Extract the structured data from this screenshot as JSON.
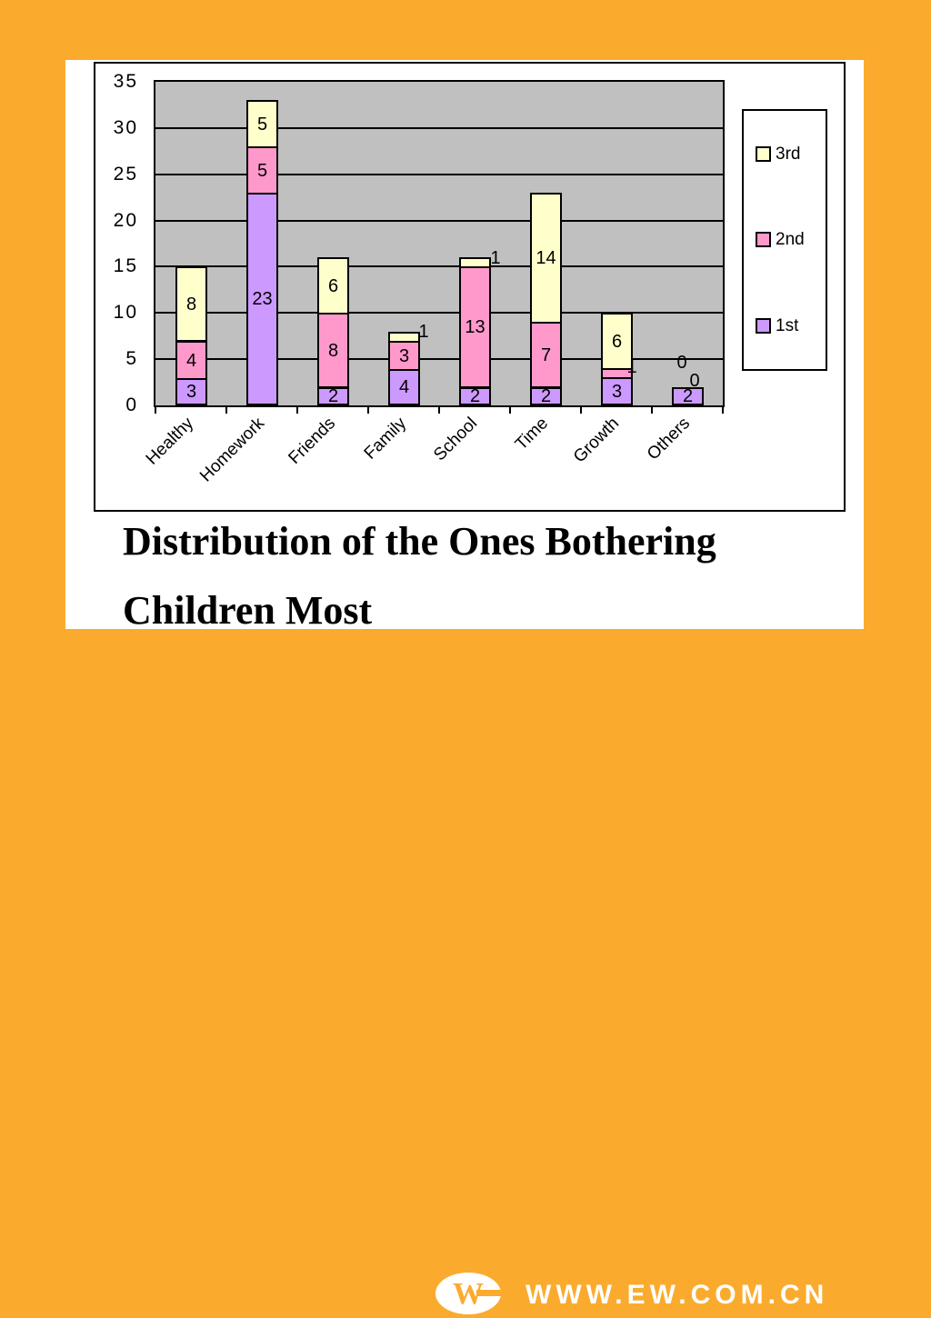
{
  "slide": {
    "title_line1": "Distribution of the Ones Bothering",
    "title_line2": "Children Most"
  },
  "watermark": {
    "site_text": "WWW.EW.COM.CN"
  },
  "colors": {
    "background_orange": "#FAAB2E",
    "plot_background": "#C0C0C0",
    "series_1st": "#CC99FF",
    "series_2nd": "#FF99CC",
    "series_3rd": "#FFFFCC"
  },
  "chart_data": {
    "type": "bar",
    "stacked": true,
    "title": "Distribution of the Ones Bothering Children Most",
    "xlabel": "",
    "ylabel": "",
    "categories": [
      "Healthy",
      "Homework",
      "Friends",
      "Family",
      "School",
      "Time",
      "Growth",
      "Others"
    ],
    "series": [
      {
        "name": "1st",
        "color": "#CC99FF",
        "values": [
          3,
          23,
          2,
          4,
          2,
          2,
          3,
          2
        ]
      },
      {
        "name": "2nd",
        "color": "#FF99CC",
        "values": [
          4,
          5,
          8,
          3,
          13,
          7,
          1,
          0
        ]
      },
      {
        "name": "3rd",
        "color": "#FFFFCC",
        "values": [
          8,
          5,
          6,
          1,
          1,
          14,
          6,
          0
        ]
      }
    ],
    "totals": [
      15,
      33,
      16,
      8,
      16,
      23,
      10,
      2
    ],
    "ylim": [
      0,
      35
    ],
    "yticks": [
      0,
      5,
      10,
      15,
      20,
      25,
      30,
      35
    ],
    "grid": true,
    "legend": {
      "position": "right",
      "entries": [
        "3rd",
        "2nd",
        "1st"
      ]
    },
    "outside_labels": [
      {
        "category": "Family",
        "series": "3rd",
        "x": 295,
        "y": 275
      },
      {
        "category": "School",
        "series": "3rd",
        "x": 374,
        "y": 194
      },
      {
        "category": "Growth",
        "series": "2nd",
        "x": 524,
        "y": 314
      },
      {
        "category": "Others",
        "series": "2nd",
        "x": 579,
        "y": 309
      },
      {
        "category": "Others",
        "series": "3rd",
        "x": 593,
        "y": 329
      }
    ]
  }
}
